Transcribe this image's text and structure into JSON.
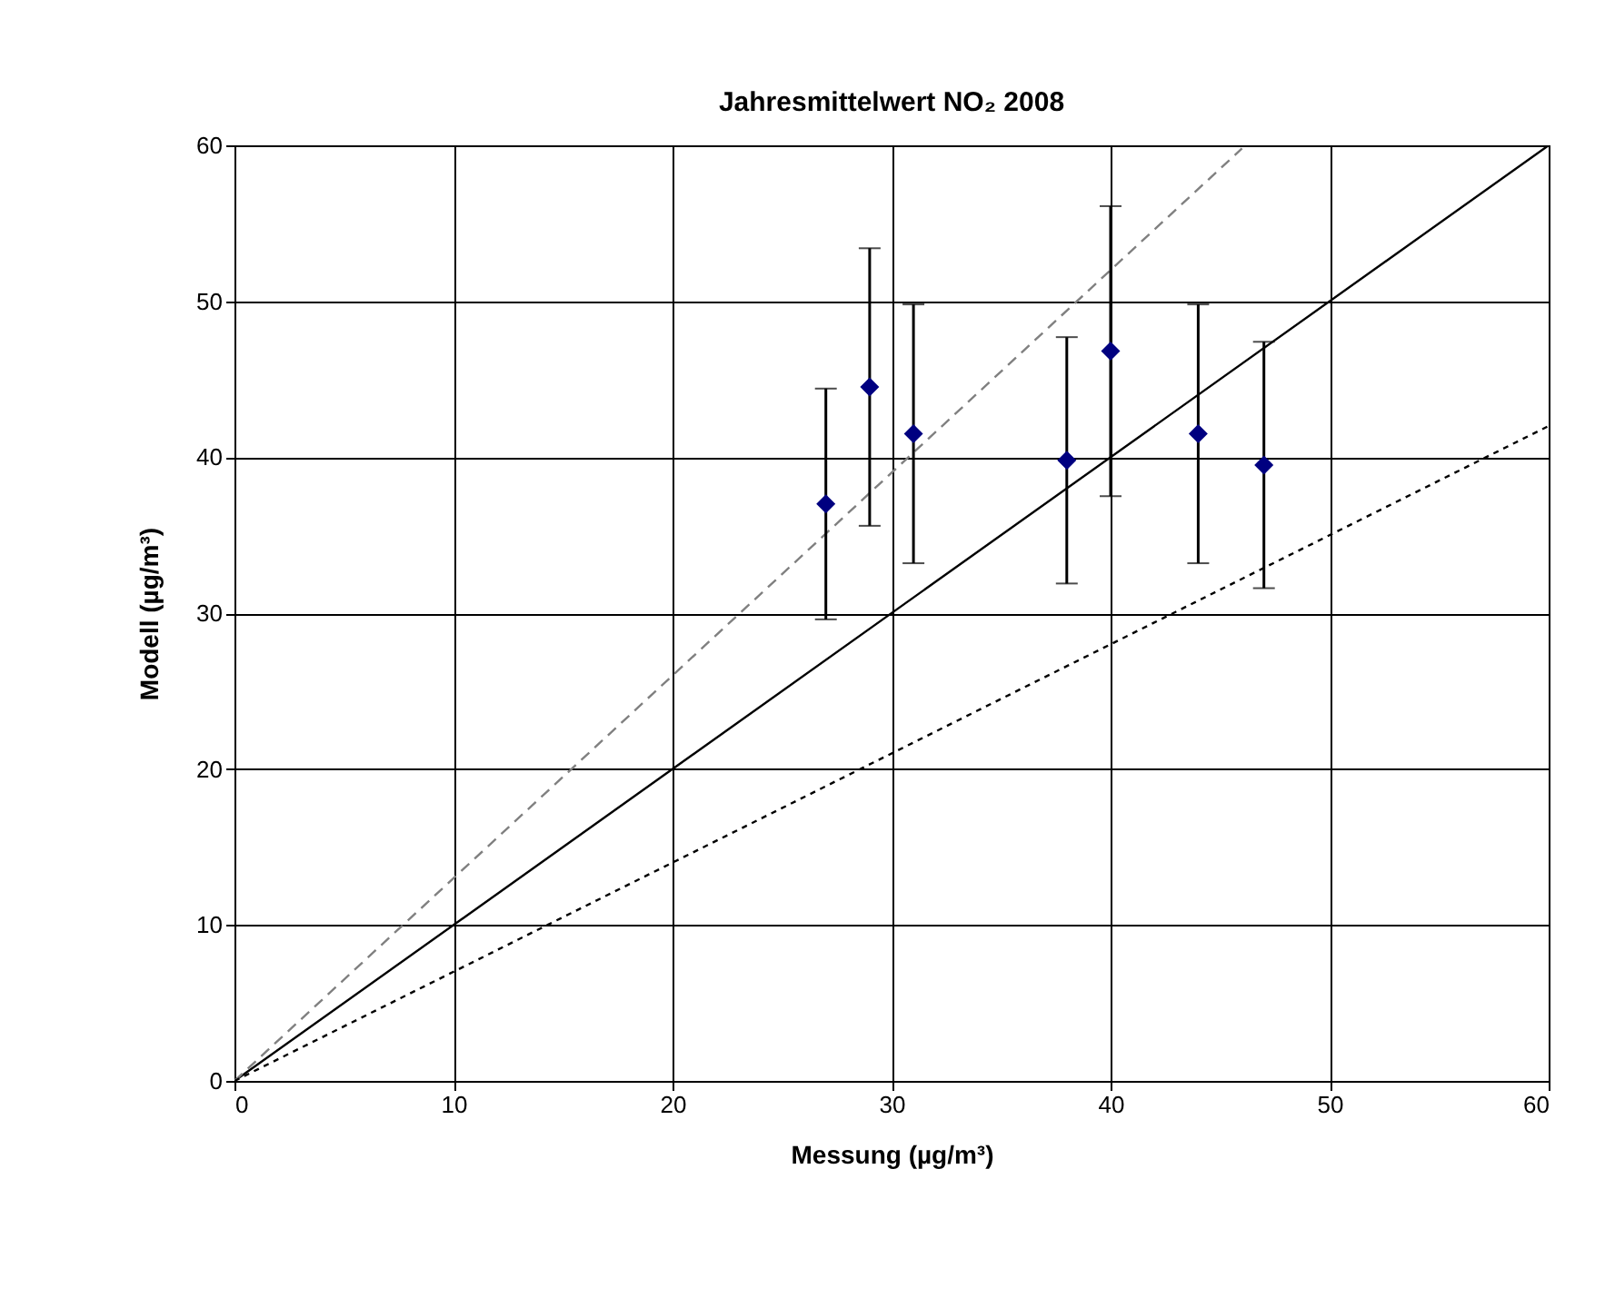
{
  "chart_data": {
    "type": "scatter",
    "title": "Jahresmittelwert NO₂ 2008",
    "xlabel": "Messung (µg/m³)",
    "ylabel": "Modell (µg/m³)",
    "xlim": [
      0,
      60
    ],
    "xticks": [
      0,
      10,
      20,
      30,
      40,
      50,
      60
    ],
    "ylim": [
      0,
      60
    ],
    "yticks": [
      0,
      10,
      20,
      30,
      40,
      50,
      60
    ],
    "grid": true,
    "series": [
      {
        "type": "line",
        "color": "#000000",
        "line_style": "solid",
        "marker": "none",
        "x": [
          0,
          60
        ],
        "values": [
          0,
          60
        ]
      },
      {
        "type": "line",
        "color": "#808080",
        "line_style": "dashed",
        "marker": "none",
        "x": [
          0,
          46
        ],
        "values": [
          0,
          59.8
        ]
      },
      {
        "type": "line",
        "color": "#000000",
        "line_style": "dotted",
        "marker": "none",
        "x": [
          0,
          60
        ],
        "values": [
          0,
          42
        ]
      },
      {
        "color": "#000080",
        "marker": "diamond",
        "x": [
          27,
          29,
          31,
          38,
          40,
          44,
          47
        ],
        "values": [
          37,
          44.5,
          41.5,
          39.8,
          46.8,
          41.5,
          39.5
        ],
        "errors": [
          7.4,
          8.9,
          8.3,
          7.9,
          9.3,
          8.3,
          7.9
        ]
      }
    ]
  }
}
